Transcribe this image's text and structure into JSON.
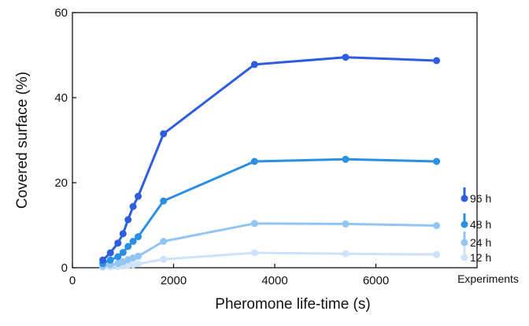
{
  "chart_data": {
    "type": "line",
    "xlabel": "Pheromone life-time (s)",
    "ylabel": "Covered surface (%)",
    "xlim": [
      0,
      8000
    ],
    "ylim": [
      0,
      60
    ],
    "xticks": [
      "0",
      "2000",
      "4000",
      "6000"
    ],
    "yticks": [
      "0",
      "20",
      "40",
      "60"
    ],
    "grid": false,
    "legend_title": "Experiments",
    "legend_position": "right",
    "series": [
      {
        "name": "96 h",
        "color": "#2e5de0",
        "points": [
          [
            600,
            1.8
          ],
          [
            750,
            3.5
          ],
          [
            900,
            5.8
          ],
          [
            1000,
            8.0
          ],
          [
            1100,
            11.3
          ],
          [
            1200,
            14.4
          ],
          [
            1300,
            16.8
          ],
          [
            1800,
            31.5
          ],
          [
            3600,
            47.8
          ],
          [
            5400,
            49.5
          ],
          [
            7200,
            48.7
          ]
        ]
      },
      {
        "name": "48 h",
        "color": "#2b8fe6",
        "points": [
          [
            600,
            1.0
          ],
          [
            750,
            1.8
          ],
          [
            900,
            2.6
          ],
          [
            1000,
            3.6
          ],
          [
            1100,
            5.0
          ],
          [
            1200,
            6.2
          ],
          [
            1300,
            7.3
          ],
          [
            1800,
            15.7
          ],
          [
            3600,
            25.0
          ],
          [
            5400,
            25.5
          ],
          [
            7200,
            25.0
          ]
        ]
      },
      {
        "name": "24 h",
        "color": "#93c5f3",
        "points": [
          [
            600,
            0.4
          ],
          [
            750,
            0.7
          ],
          [
            900,
            1.0
          ],
          [
            1000,
            1.4
          ],
          [
            1100,
            1.9
          ],
          [
            1200,
            2.3
          ],
          [
            1300,
            2.7
          ],
          [
            1800,
            6.2
          ],
          [
            3600,
            10.4
          ],
          [
            5400,
            10.3
          ],
          [
            7200,
            9.9
          ]
        ]
      },
      {
        "name": "12 h",
        "color": "#cfe3f8",
        "points": [
          [
            600,
            0.1
          ],
          [
            750,
            0.2
          ],
          [
            900,
            0.3
          ],
          [
            1000,
            0.4
          ],
          [
            1100,
            0.6
          ],
          [
            1200,
            0.7
          ],
          [
            1300,
            0.9
          ],
          [
            1800,
            2.0
          ],
          [
            3600,
            3.5
          ],
          [
            5400,
            3.3
          ],
          [
            7200,
            3.1
          ]
        ]
      }
    ]
  }
}
